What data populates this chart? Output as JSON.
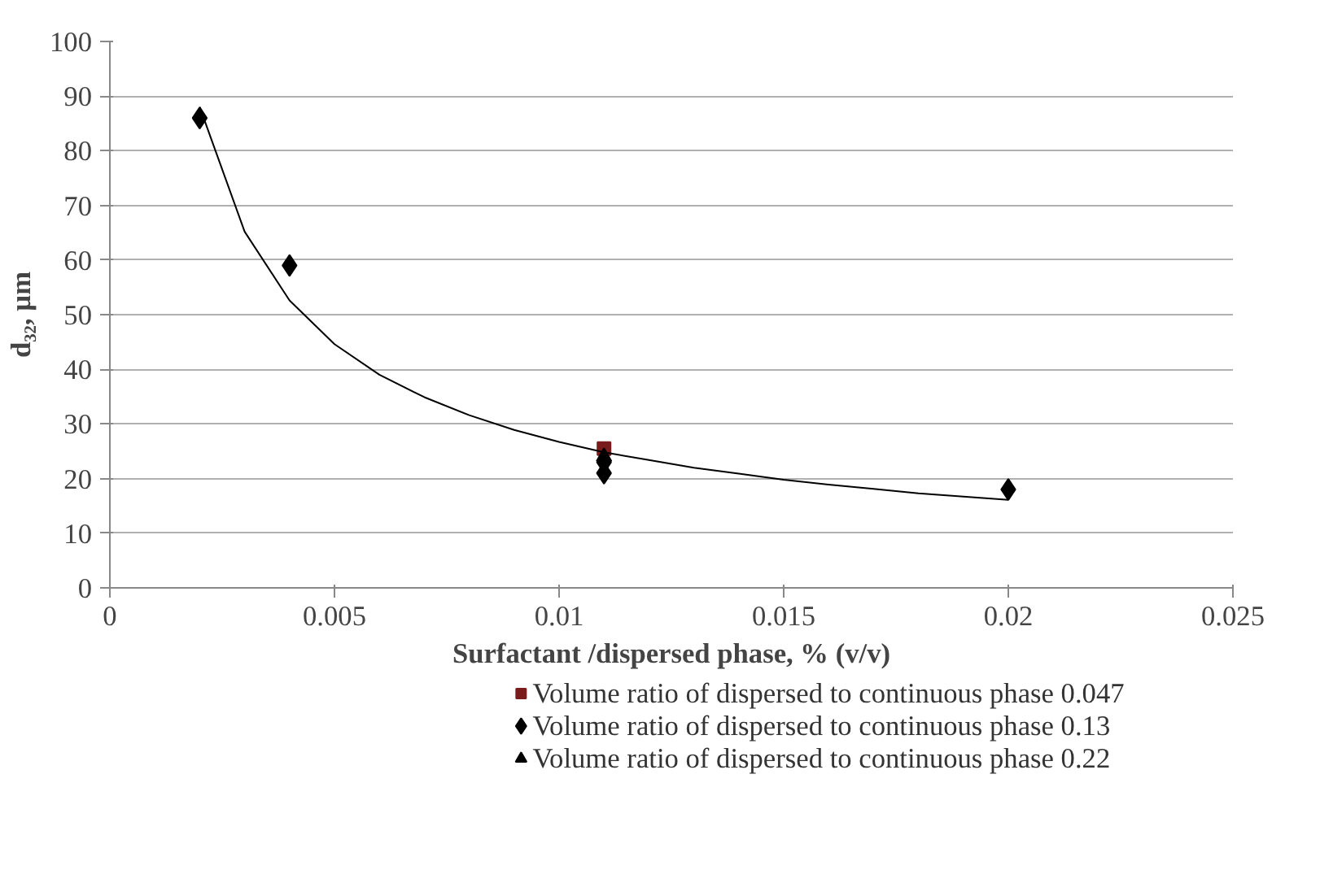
{
  "chart_data": {
    "type": "scatter",
    "xlabel": "Surfactant /dispersed phase, % (v/v)",
    "ylabel": "d₃₂, µm",
    "xlim": [
      0,
      0.025
    ],
    "xticks": [
      0,
      0.005,
      0.01,
      0.015,
      0.02,
      0.025
    ],
    "ylim": [
      0,
      100
    ],
    "yticks": [
      0,
      10,
      20,
      30,
      40,
      50,
      60,
      70,
      80,
      90,
      100
    ],
    "grid": "y",
    "legend": "bottom",
    "series": [
      {
        "name": "Volume ratio of dispersed to continuous phase 0.047",
        "color": "#7b1c1c",
        "marker": "square",
        "x": [
          0.011
        ],
        "values": [
          25.5
        ]
      },
      {
        "name": "Volume ratio of dispersed to continuous phase 0.13",
        "color": "#000000",
        "marker": "diamond",
        "x": [
          0.002,
          0.004,
          0.011,
          0.011,
          0.02
        ],
        "values": [
          86,
          59,
          21,
          23,
          18
        ]
      },
      {
        "name": "Volume ratio of dispersed to continuous phase 0.22",
        "color": "#000000",
        "marker": "triangle",
        "x": [
          0.011
        ],
        "values": [
          24
        ]
      },
      {
        "type": "line",
        "color": "#000000",
        "marker": "none",
        "x": [
          0.002,
          0.003,
          0.004,
          0.005,
          0.006,
          0.007,
          0.008,
          0.009,
          0.01,
          0.011,
          0.012,
          0.013,
          0.014,
          0.015,
          0.016,
          0.017,
          0.018,
          0.019,
          0.02
        ],
        "values": [
          88,
          65.2,
          52.6,
          44.6,
          39.0,
          34.9,
          31.6,
          28.9,
          26.7,
          24.8,
          23.4,
          22.0,
          20.9,
          19.8,
          18.9,
          18.1,
          17.3,
          16.7,
          16.1
        ]
      }
    ]
  }
}
